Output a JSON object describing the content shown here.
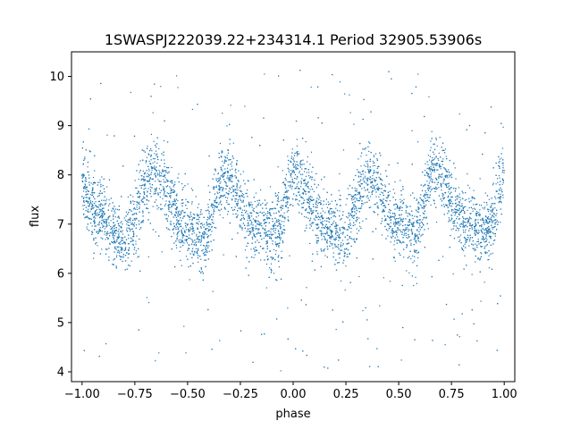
{
  "chart_data": {
    "type": "scatter",
    "title": "1SWASPJ222039.22+234314.1 Period 32905.53906s",
    "xlabel": "phase",
    "ylabel": "flux",
    "xlim": [
      -1.05,
      1.05
    ],
    "ylim": [
      3.8,
      10.5
    ],
    "x_ticks": [
      -1.0,
      -0.75,
      -0.5,
      -0.25,
      0.0,
      0.25,
      0.5,
      0.75,
      1.0
    ],
    "x_tick_labels": [
      "−1.00",
      "−0.75",
      "−0.50",
      "−0.25",
      "0.00",
      "0.25",
      "0.50",
      "0.75",
      "1.00"
    ],
    "y_ticks": [
      4,
      5,
      6,
      7,
      8,
      9,
      10
    ],
    "y_tick_labels": [
      "4",
      "5",
      "6",
      "7",
      "8",
      "9",
      "10"
    ],
    "grid": false,
    "point_color": "#1f77b4",
    "phase_range": [
      -1.0,
      1.0
    ],
    "curve_knots": [
      {
        "x": -1.0,
        "y": 7.7
      },
      {
        "x": -0.92,
        "y": 7.2
      },
      {
        "x": -0.8,
        "y": 6.7
      },
      {
        "x": -0.66,
        "y": 8.05
      },
      {
        "x": -0.5,
        "y": 6.85
      },
      {
        "x": -0.42,
        "y": 6.7
      },
      {
        "x": -0.33,
        "y": 7.95
      },
      {
        "x": -0.18,
        "y": 6.95
      },
      {
        "x": -0.08,
        "y": 6.85
      },
      {
        "x": 0.0,
        "y": 8.0
      },
      {
        "x": 0.15,
        "y": 7.0
      },
      {
        "x": 0.24,
        "y": 6.75
      },
      {
        "x": 0.35,
        "y": 8.0
      },
      {
        "x": 0.5,
        "y": 7.0
      },
      {
        "x": 0.57,
        "y": 6.75
      },
      {
        "x": 0.67,
        "y": 8.1
      },
      {
        "x": 0.82,
        "y": 7.0
      },
      {
        "x": 0.92,
        "y": 6.85
      },
      {
        "x": 1.0,
        "y": 8.0
      }
    ],
    "scatter_sd": 0.35,
    "outlier_range": [
      4.0,
      10.2
    ]
  }
}
